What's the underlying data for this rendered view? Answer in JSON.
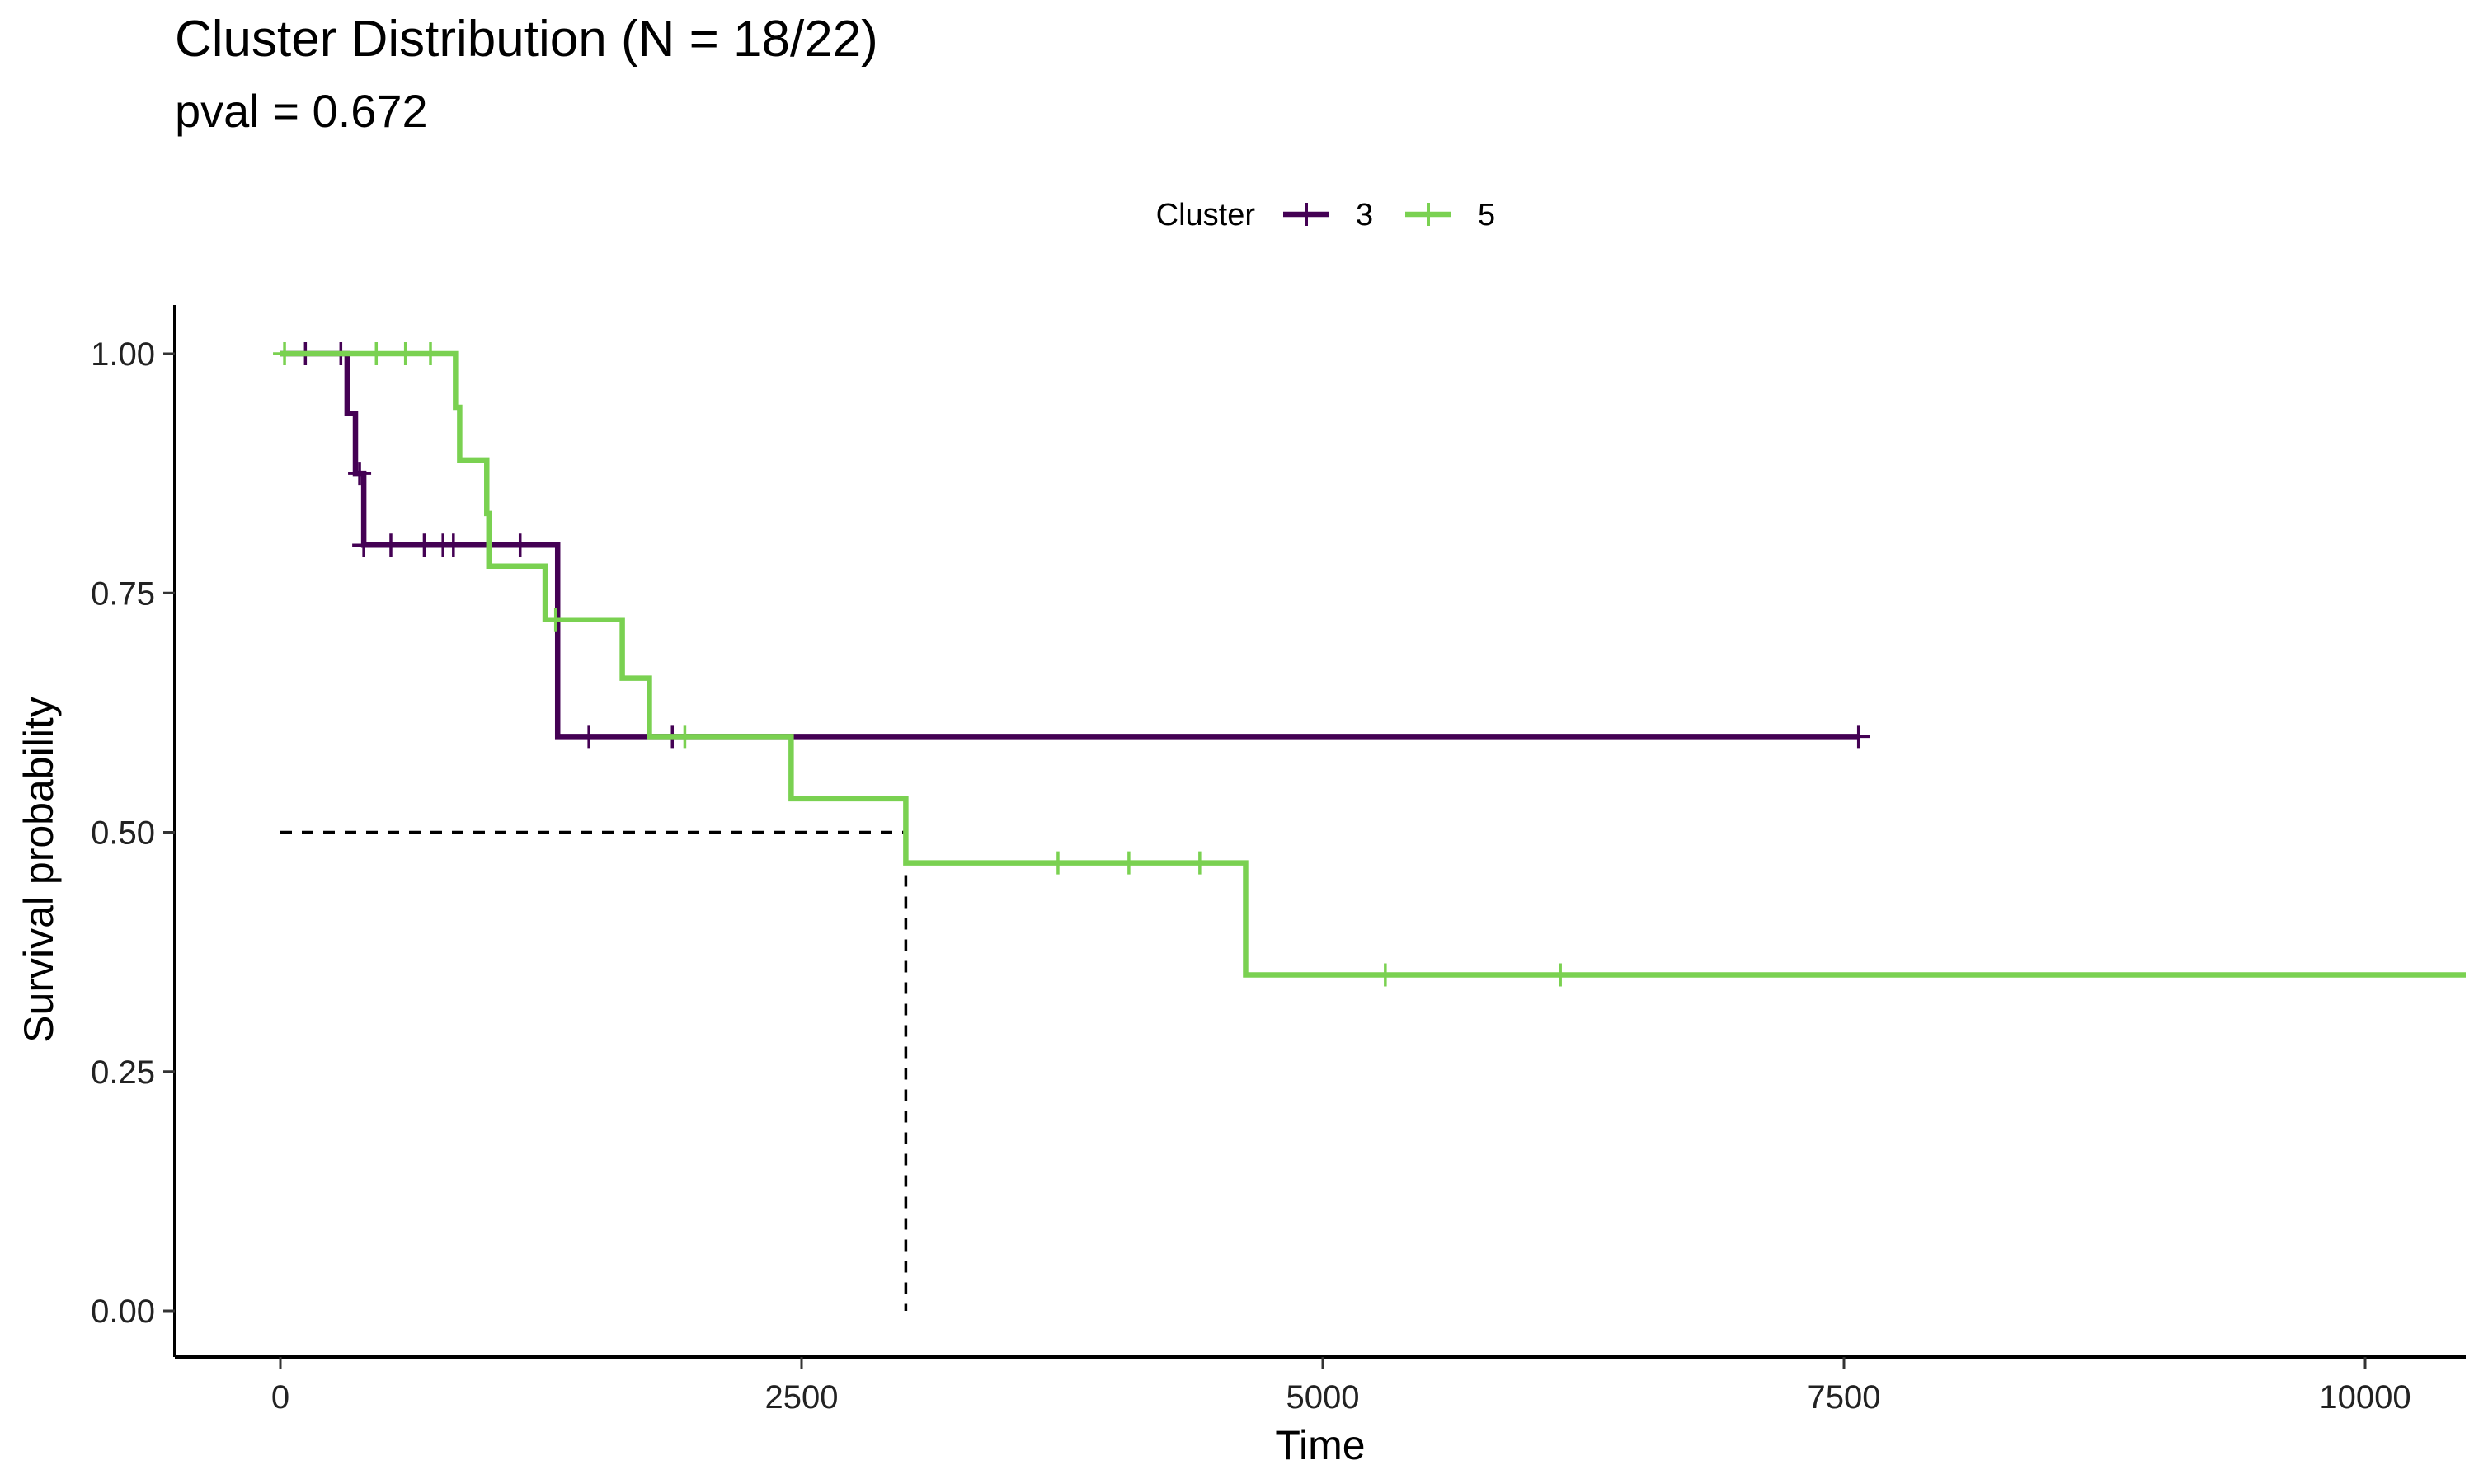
{
  "chart_data": {
    "type": "line",
    "subtype": "kaplan-meier step",
    "title": "Cluster Distribution (N = 18/22)",
    "subtitle": "pval = 0.672",
    "xlabel": "Time",
    "ylabel": "Survival probability",
    "xlim": [
      -500,
      10500
    ],
    "ylim": [
      0,
      1
    ],
    "x_ticks": [
      0,
      2500,
      5000,
      7500,
      10000
    ],
    "x_tick_labels": [
      "0",
      "2500",
      "5000",
      "7500",
      "10000"
    ],
    "y_ticks": [
      0,
      0.25,
      0.5,
      0.75,
      1
    ],
    "y_tick_labels": [
      "0.00",
      "0.25",
      "0.50",
      "0.75",
      "1.00"
    ],
    "grid": false,
    "legend": {
      "title": "Cluster",
      "placement": "top"
    },
    "median_reference": {
      "y": 0.5,
      "x": 3000,
      "style": "dashed"
    },
    "series": [
      {
        "name": "3",
        "color": "#440154",
        "steps": [
          [
            0,
            1.0
          ],
          [
            320,
            0.9375
          ],
          [
            360,
            0.875
          ],
          [
            400,
            0.8
          ],
          [
            1330,
            0.6
          ],
          [
            7570,
            0.6
          ]
        ],
        "censored": [
          [
            120,
            1.0
          ],
          [
            290,
            1.0
          ],
          [
            380,
            0.875
          ],
          [
            400,
            0.8
          ],
          [
            530,
            0.8
          ],
          [
            690,
            0.8
          ],
          [
            780,
            0.8
          ],
          [
            830,
            0.8
          ],
          [
            1150,
            0.8
          ],
          [
            1480,
            0.6
          ],
          [
            1880,
            0.6
          ],
          [
            7570,
            0.6
          ]
        ]
      },
      {
        "name": "5",
        "color": "#7AD151",
        "steps": [
          [
            0,
            1.0
          ],
          [
            840,
            0.944
          ],
          [
            860,
            0.889
          ],
          [
            990,
            0.833
          ],
          [
            1000,
            0.778
          ],
          [
            1270,
            0.722
          ],
          [
            1640,
            0.661
          ],
          [
            1770,
            0.6
          ],
          [
            2450,
            0.535
          ],
          [
            3000,
            0.468
          ],
          [
            4630,
            0.351
          ],
          [
            10500,
            0.351
          ]
        ],
        "censored": [
          [
            20,
            1.0
          ],
          [
            460,
            1.0
          ],
          [
            600,
            1.0
          ],
          [
            720,
            1.0
          ],
          [
            1320,
            0.722
          ],
          [
            1940,
            0.6
          ],
          [
            3730,
            0.468
          ],
          [
            4070,
            0.468
          ],
          [
            4410,
            0.468
          ],
          [
            5300,
            0.351
          ],
          [
            6140,
            0.351
          ]
        ]
      }
    ]
  }
}
